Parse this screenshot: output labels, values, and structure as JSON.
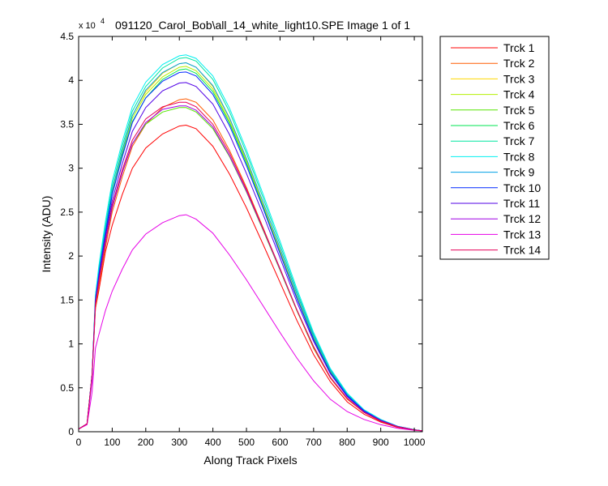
{
  "chart_data": {
    "type": "line",
    "title": "091120_Carol_Bob\\all_14_white_light10.SPE  Image 1 of 1",
    "xlabel": "Along Track Pixels",
    "ylabel": "Intensity (ADU)",
    "y_multiplier": "x 10",
    "y_multiplier_exponent": "4",
    "xlim": [
      0,
      1024
    ],
    "ylim": [
      0,
      45000
    ],
    "xticks": [
      0,
      100,
      200,
      300,
      400,
      500,
      600,
      700,
      800,
      900,
      1000
    ],
    "yticks": [
      0,
      5000,
      10000,
      15000,
      20000,
      25000,
      30000,
      35000,
      40000,
      45000
    ],
    "x_tick_labels": [
      "0",
      "100",
      "200",
      "300",
      "400",
      "500",
      "600",
      "700",
      "800",
      "900",
      "1000"
    ],
    "y_tick_labels": [
      "0",
      "0.5",
      "1",
      "1.5",
      "2",
      "2.5",
      "3",
      "3.5",
      "4",
      "4.5"
    ],
    "grid": false,
    "legend_position": "outside-top-right",
    "x": [
      0,
      25,
      40,
      50,
      60,
      80,
      100,
      130,
      160,
      200,
      250,
      300,
      320,
      350,
      400,
      450,
      500,
      550,
      600,
      650,
      700,
      750,
      800,
      850,
      900,
      950,
      1000,
      1024
    ],
    "series": [
      {
        "name": "Trck 1",
        "color": "#ff0000",
        "values": [
          300,
          900,
          6500,
          14000,
          16000,
          20500,
          23500,
          27000,
          30000,
          32300,
          33900,
          34800,
          34900,
          34500,
          32500,
          29300,
          25500,
          21300,
          17000,
          12700,
          8800,
          5700,
          3400,
          2000,
          1100,
          500,
          200,
          100
        ]
      },
      {
        "name": "Trck 2",
        "color": "#ff5a00",
        "values": [
          300,
          900,
          6500,
          14000,
          16500,
          21000,
          25000,
          29000,
          32500,
          35000,
          36900,
          37800,
          37900,
          37500,
          35500,
          32000,
          27800,
          23200,
          18500,
          13800,
          9500,
          6100,
          3700,
          2200,
          1200,
          550,
          200,
          100
        ]
      },
      {
        "name": "Trck 3",
        "color": "#ffd700",
        "values": [
          300,
          900,
          6500,
          15000,
          18000,
          23000,
          27500,
          32000,
          36000,
          38700,
          40800,
          41900,
          42000,
          41500,
          39300,
          35600,
          30900,
          25800,
          20600,
          15400,
          10700,
          6900,
          4200,
          2400,
          1300,
          600,
          220,
          100
        ]
      },
      {
        "name": "Trck 4",
        "color": "#b4f000",
        "values": [
          300,
          900,
          6500,
          15000,
          17800,
          22800,
          27300,
          31800,
          35700,
          38400,
          40400,
          41500,
          41600,
          41100,
          39000,
          35300,
          30700,
          25600,
          20400,
          15300,
          10600,
          6800,
          4100,
          2400,
          1300,
          600,
          220,
          100
        ]
      },
      {
        "name": "Trck 5",
        "color": "#55e600",
        "values": [
          300,
          900,
          6500,
          14500,
          17000,
          21500,
          25500,
          29500,
          32800,
          35000,
          36400,
          36900,
          36900,
          36400,
          34500,
          31300,
          27300,
          22900,
          18400,
          13800,
          9600,
          6200,
          3800,
          2200,
          1200,
          560,
          200,
          100
        ]
      },
      {
        "name": "Trck 6",
        "color": "#00e650",
        "values": [
          300,
          900,
          6500,
          15000,
          17500,
          22500,
          27000,
          31500,
          35300,
          38000,
          40100,
          41200,
          41300,
          40800,
          38700,
          35100,
          30600,
          25600,
          20400,
          15300,
          10600,
          6800,
          4100,
          2400,
          1300,
          600,
          220,
          100
        ]
      },
      {
        "name": "Trck 7",
        "color": "#00e6a0",
        "values": [
          300,
          900,
          6500,
          15500,
          18500,
          23500,
          28000,
          32500,
          36500,
          39300,
          41400,
          42500,
          42600,
          42200,
          40100,
          36400,
          31700,
          26600,
          21300,
          16000,
          11100,
          7100,
          4300,
          2500,
          1400,
          620,
          230,
          100
        ]
      },
      {
        "name": "Trck 8",
        "color": "#00f0f0",
        "values": [
          300,
          900,
          6500,
          15500,
          18800,
          24000,
          28500,
          33000,
          37000,
          39800,
          41800,
          42800,
          42900,
          42500,
          40500,
          36800,
          32100,
          27000,
          21700,
          16300,
          11300,
          7200,
          4400,
          2500,
          1400,
          630,
          230,
          100
        ]
      },
      {
        "name": "Trck 9",
        "color": "#00a0e6",
        "values": [
          300,
          900,
          6500,
          15000,
          18000,
          23000,
          27500,
          32000,
          36000,
          38900,
          40900,
          41900,
          42000,
          41500,
          39400,
          35700,
          31100,
          26100,
          20900,
          15700,
          10900,
          7000,
          4200,
          2400,
          1300,
          610,
          220,
          100
        ]
      },
      {
        "name": "Trck 10",
        "color": "#0028ff",
        "values": [
          300,
          900,
          6500,
          15000,
          17800,
          22600,
          27000,
          31300,
          35200,
          38000,
          39900,
          40900,
          40950,
          40500,
          38400,
          34800,
          30300,
          25400,
          20300,
          15200,
          10500,
          6700,
          4100,
          2400,
          1300,
          600,
          220,
          100
        ]
      },
      {
        "name": "Trck 11",
        "color": "#5000e6",
        "values": [
          300,
          900,
          6500,
          14800,
          17500,
          22200,
          26300,
          30500,
          34200,
          36900,
          38800,
          39700,
          39750,
          39300,
          37300,
          33800,
          29400,
          24700,
          19800,
          14800,
          10300,
          6600,
          4000,
          2300,
          1300,
          590,
          210,
          100
        ]
      },
      {
        "name": "Trck 12",
        "color": "#a000e6",
        "values": [
          300,
          900,
          6000,
          14500,
          17000,
          21500,
          25500,
          29500,
          32800,
          35200,
          36700,
          37100,
          37100,
          36600,
          34700,
          31400,
          27400,
          23000,
          18500,
          13900,
          9700,
          6200,
          3800,
          2200,
          1200,
          560,
          200,
          100
        ]
      },
      {
        "name": "Trck 13",
        "color": "#e600e6",
        "values": [
          300,
          800,
          4500,
          9500,
          11000,
          13800,
          16000,
          18500,
          20700,
          22500,
          23800,
          24600,
          24700,
          24200,
          22600,
          20100,
          17300,
          14300,
          11300,
          8400,
          5800,
          3700,
          2300,
          1400,
          800,
          400,
          170,
          100
        ]
      },
      {
        "name": "Trck 14",
        "color": "#e6005a",
        "values": [
          300,
          900,
          6500,
          14500,
          17000,
          21700,
          25800,
          29800,
          33200,
          35600,
          37000,
          37500,
          37500,
          37000,
          35000,
          31700,
          27600,
          23100,
          18600,
          13900,
          9700,
          6200,
          3800,
          2200,
          1200,
          560,
          200,
          100
        ]
      }
    ]
  }
}
